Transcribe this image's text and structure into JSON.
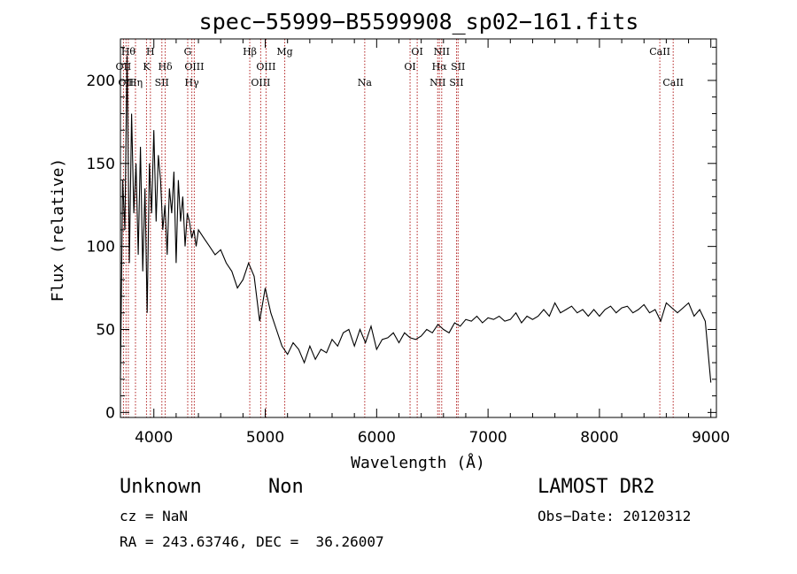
{
  "chart_data": {
    "type": "line",
    "title": "spec−55999−B5599908_sp02−161.fits",
    "xlabel": "Wavelength (Å)",
    "ylabel": "Flux (relative)",
    "xlim": [
      3700,
      9050
    ],
    "ylim": [
      -3,
      225
    ],
    "xticks": [
      4000,
      5000,
      6000,
      7000,
      8000,
      9000
    ],
    "yticks": [
      0,
      50,
      100,
      150,
      200
    ],
    "line_color": "#000000",
    "marker_color": "#b22222",
    "series": [
      {
        "x": [
          3700,
          3720,
          3740,
          3760,
          3780,
          3800,
          3820,
          3840,
          3860,
          3880,
          3900,
          3920,
          3940,
          3960,
          3980,
          4000,
          4020,
          4040,
          4060,
          4080,
          4100,
          4120,
          4140,
          4160,
          4180,
          4200,
          4220,
          4240,
          4260,
          4280,
          4300,
          4320,
          4340,
          4360,
          4380,
          4400,
          4450,
          4500,
          4550,
          4600,
          4650,
          4700,
          4750,
          4800,
          4850,
          4900,
          4950,
          5000,
          5050,
          5100,
          5150,
          5200,
          5250,
          5300,
          5350,
          5400,
          5450,
          5500,
          5550,
          5600,
          5650,
          5700,
          5750,
          5800,
          5850,
          5900,
          5950,
          6000,
          6050,
          6100,
          6150,
          6200,
          6250,
          6300,
          6350,
          6400,
          6450,
          6500,
          6550,
          6600,
          6650,
          6700,
          6750,
          6800,
          6850,
          6900,
          6950,
          7000,
          7050,
          7100,
          7150,
          7200,
          7250,
          7300,
          7350,
          7400,
          7450,
          7500,
          7550,
          7600,
          7650,
          7700,
          7750,
          7800,
          7850,
          7900,
          7950,
          8000,
          8050,
          8100,
          8150,
          8200,
          8250,
          8300,
          8350,
          8400,
          8450,
          8500,
          8550,
          8600,
          8650,
          8700,
          8750,
          8800,
          8850,
          8900,
          8950,
          9000
        ],
        "y": [
          20,
          140,
          110,
          215,
          90,
          180,
          120,
          150,
          95,
          160,
          85,
          135,
          60,
          150,
          120,
          170,
          115,
          155,
          140,
          110,
          125,
          95,
          135,
          120,
          145,
          90,
          140,
          115,
          130,
          100,
          120,
          115,
          105,
          110,
          100,
          110,
          105,
          100,
          95,
          98,
          90,
          85,
          75,
          80,
          90,
          82,
          55,
          75,
          60,
          50,
          40,
          35,
          42,
          38,
          30,
          40,
          32,
          38,
          36,
          44,
          40,
          48,
          50,
          40,
          50,
          42,
          52,
          38,
          44,
          45,
          48,
          42,
          48,
          45,
          44,
          46,
          50,
          48,
          53,
          50,
          48,
          54,
          52,
          56,
          55,
          58,
          54,
          57,
          56,
          58,
          55,
          56,
          60,
          54,
          58,
          56,
          58,
          62,
          58,
          66,
          60,
          62,
          64,
          60,
          62,
          58,
          62,
          58,
          62,
          64,
          60,
          63,
          64,
          60,
          62,
          65,
          60,
          62,
          55,
          66,
          63,
          60,
          63,
          66,
          58,
          62,
          55,
          18
        ]
      }
    ],
    "line_markers": [
      {
        "wl": 3727,
        "label": "OII",
        "row": 2
      },
      {
        "wl": 3750,
        "label": "OII",
        "row": 3
      },
      {
        "wl": 3771,
        "label": "Hθ",
        "row": 1
      },
      {
        "wl": 3835,
        "label": "Hη",
        "row": 3
      },
      {
        "wl": 3934,
        "label": "K",
        "row": 2
      },
      {
        "wl": 3969,
        "label": "H",
        "row": 1
      },
      {
        "wl": 4072,
        "label": "SII",
        "row": 3
      },
      {
        "wl": 4102,
        "label": "Hδ",
        "row": 2
      },
      {
        "wl": 4304,
        "label": "G",
        "row": 1
      },
      {
        "wl": 4341,
        "label": "Hγ",
        "row": 3
      },
      {
        "wl": 4363,
        "label": "OIII",
        "row": 2
      },
      {
        "wl": 4861,
        "label": "Hβ",
        "row": 1
      },
      {
        "wl": 4959,
        "label": "OIII",
        "row": 3
      },
      {
        "wl": 5007,
        "label": "OIII",
        "row": 2
      },
      {
        "wl": 5175,
        "label": "Mg",
        "row": 1
      },
      {
        "wl": 5893,
        "label": "Na",
        "row": 3
      },
      {
        "wl": 6300,
        "label": "OI",
        "row": 2
      },
      {
        "wl": 6364,
        "label": "OI",
        "row": 1
      },
      {
        "wl": 6548,
        "label": "NII",
        "row": 3
      },
      {
        "wl": 6563,
        "label": "Hα",
        "row": 2
      },
      {
        "wl": 6584,
        "label": "NII",
        "row": 1
      },
      {
        "wl": 6717,
        "label": "SII",
        "row": 3
      },
      {
        "wl": 6731,
        "label": "SII",
        "row": 2
      },
      {
        "wl": 8542,
        "label": "CaII",
        "row": 1
      },
      {
        "wl": 8662,
        "label": "CaII",
        "row": 3
      }
    ]
  },
  "info": {
    "class": "Unknown",
    "subclass": "Non",
    "cz": "cz = NaN",
    "coords": "RA = 243.63746, DEC =  36.26007",
    "survey": "LAMOST DR2",
    "obs_date": "Obs−Date: 20120312"
  }
}
